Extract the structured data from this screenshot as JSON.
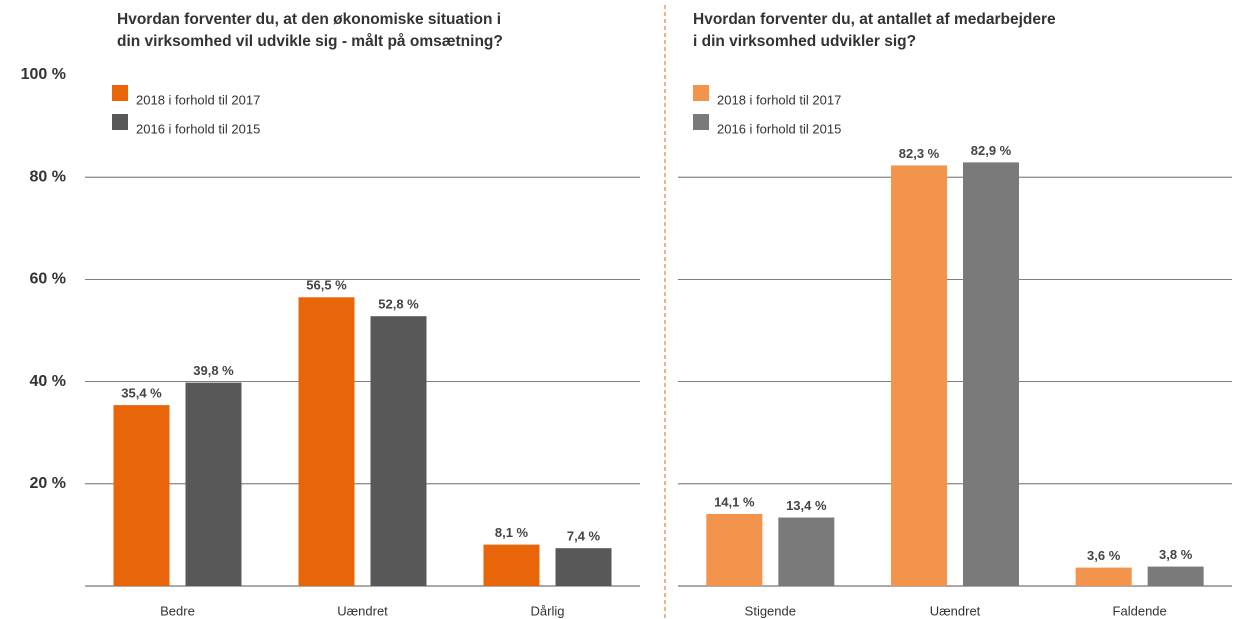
{
  "chart_data": [
    {
      "type": "bar",
      "title": [
        "Hvordan forventer du, at den økonomiske situation i",
        "din virksomhed vil udvikle sig - målt på omsætning?"
      ],
      "categories": [
        "Bedre",
        "Uændret",
        "Dårlig"
      ],
      "series": [
        {
          "name": "2018 i forhold til 2017",
          "color": "#e8650a",
          "values": [
            35.4,
            56.5,
            8.1
          ],
          "value_labels": [
            "35,4 %",
            "56,5 %",
            "8,1 %"
          ]
        },
        {
          "name": "2016 i forhold til 2015",
          "color": "#585858",
          "values": [
            39.8,
            52.8,
            7.4
          ],
          "value_labels": [
            "39,8 %",
            "52,8 %",
            "7,4 %"
          ]
        }
      ],
      "ylim": [
        0,
        100
      ],
      "yticks": [
        {
          "value": 20,
          "label": "20 %"
        },
        {
          "value": 40,
          "label": "40 %"
        },
        {
          "value": 60,
          "label": "60 %"
        },
        {
          "value": 80,
          "label": "80 %"
        },
        {
          "value": 100,
          "label": "100 %"
        }
      ],
      "grid": true
    },
    {
      "type": "bar",
      "title": [
        "Hvordan forventer du, at antallet af medarbejdere",
        "i din virksomhed udvikler sig?"
      ],
      "categories": [
        "Stigende",
        "Uændret",
        "Faldende"
      ],
      "series": [
        {
          "name": "2018 i forhold til 2017",
          "color": "#f2944b",
          "values": [
            14.1,
            82.3,
            3.6
          ],
          "value_labels": [
            "14,1 %",
            "82,3 %",
            "3,6 %"
          ]
        },
        {
          "name": "2016 i forhold til 2015",
          "color": "#7a7a7a",
          "values": [
            13.4,
            82.9,
            3.8
          ],
          "value_labels": [
            "13,4 %",
            "82,9 %",
            "3,8 %"
          ]
        }
      ],
      "ylim": [
        0,
        100
      ],
      "yticks": [
        20,
        40,
        60,
        80,
        100
      ],
      "grid": true
    }
  ]
}
